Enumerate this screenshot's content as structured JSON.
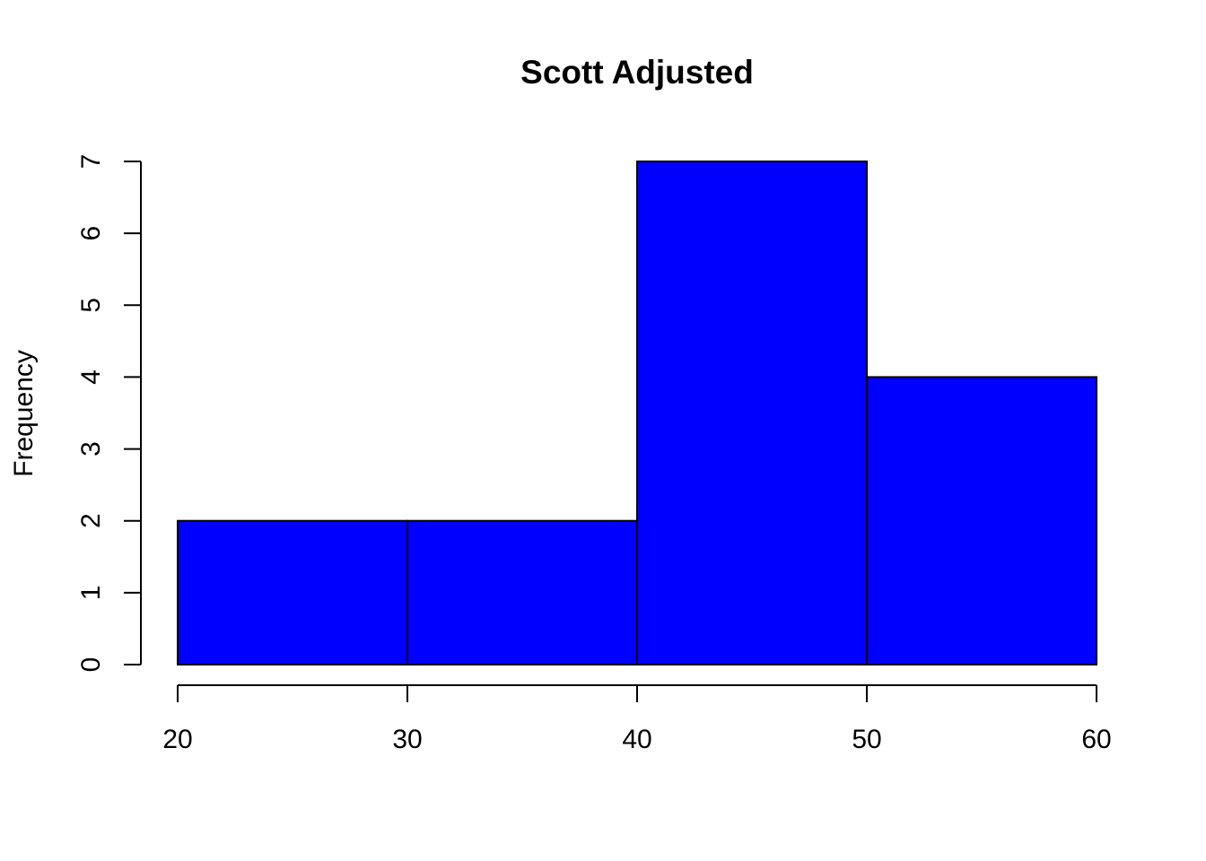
{
  "chart_data": {
    "type": "histogram",
    "title": "Scott Adjusted",
    "xlabel": "",
    "ylabel": "Frequency",
    "bins": [
      {
        "start": 20,
        "end": 30,
        "count": 2
      },
      {
        "start": 30,
        "end": 40,
        "count": 2
      },
      {
        "start": 40,
        "end": 50,
        "count": 7
      },
      {
        "start": 50,
        "end": 60,
        "count": 4
      }
    ],
    "xlim": [
      20,
      60
    ],
    "ylim": [
      0,
      7
    ],
    "xticks": [
      20,
      30,
      40,
      50,
      60
    ],
    "yticks": [
      0,
      1,
      2,
      3,
      4,
      5,
      6,
      7
    ],
    "bar_color": "#0000ff",
    "edge_color": "#000000",
    "grid": false
  }
}
